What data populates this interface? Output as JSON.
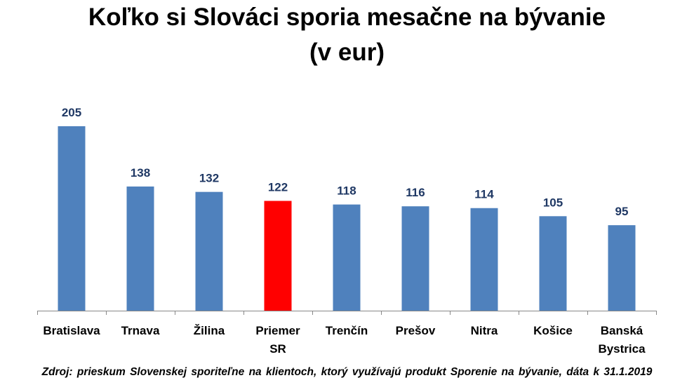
{
  "chart_data": {
    "type": "bar",
    "title_lines": [
      "Koľko si Slováci sporia mesačne na bývanie",
      "(v eur)"
    ],
    "categories": [
      [
        "Bratislava"
      ],
      [
        "Trnava"
      ],
      [
        "Žilina"
      ],
      [
        "Priemer",
        "SR"
      ],
      [
        "Trenčín"
      ],
      [
        "Prešov"
      ],
      [
        "Nitra"
      ],
      [
        "Košice"
      ],
      [
        "Banská",
        "Bystrica"
      ]
    ],
    "values": [
      205,
      138,
      132,
      122,
      118,
      116,
      114,
      105,
      95
    ],
    "highlight_index": 3,
    "bar_color": "#4f81bd",
    "highlight_color": "#ff0000",
    "label_color": "#1f3864",
    "ylim": [
      0,
      205
    ],
    "grid": false,
    "legend": "none"
  },
  "source_note": "Zdroj: prieskum Slovenskej sporiteľne na klientoch, ktorý využívajú produkt Sporenie na bývanie, dáta k 31.1.2019"
}
